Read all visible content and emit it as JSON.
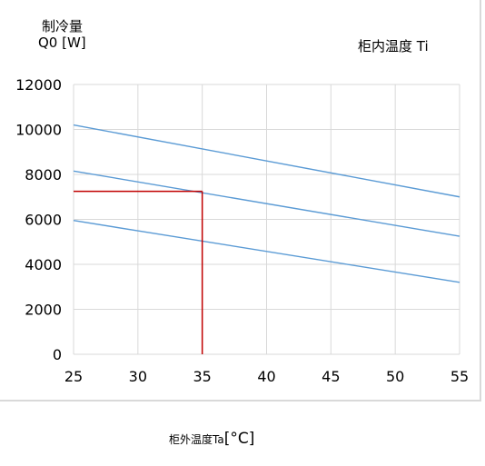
{
  "chart_data": {
    "type": "line",
    "ylabel_line1": "制冷量",
    "ylabel_line2": "Q0 [W]",
    "series_title": "柜内温度  Ti",
    "xlabel_main": "柜外温度Ta",
    "xlabel_unit": "[°C]",
    "xlim": [
      25,
      55
    ],
    "ylim": [
      0,
      12000
    ],
    "x_ticks": [
      "25",
      "30",
      "35",
      "40",
      "45",
      "50",
      "55"
    ],
    "y_ticks": [
      "0",
      "2000",
      "4000",
      "6000",
      "8000",
      "10000",
      "12000"
    ],
    "grid": true,
    "series": [
      {
        "x": [
          25,
          55
        ],
        "values": [
          10200,
          7000
        ],
        "color": "#5b9bd5"
      },
      {
        "x": [
          25,
          55
        ],
        "values": [
          8150,
          5250
        ],
        "color": "#5b9bd5"
      },
      {
        "x": [
          25,
          55
        ],
        "values": [
          5950,
          3200
        ],
        "color": "#5b9bd5"
      }
    ],
    "reference": {
      "x": 35,
      "y": 7250,
      "color": "#c00000"
    }
  }
}
